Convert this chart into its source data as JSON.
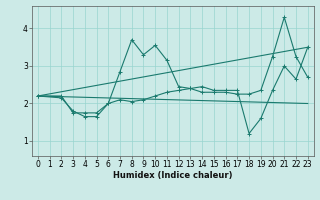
{
  "xlabel": "Humidex (Indice chaleur)",
  "xlim": [
    -0.5,
    23.5
  ],
  "ylim": [
    0.6,
    4.6
  ],
  "yticks": [
    1,
    2,
    3,
    4
  ],
  "xticks": [
    0,
    1,
    2,
    3,
    4,
    5,
    6,
    7,
    8,
    9,
    10,
    11,
    12,
    13,
    14,
    15,
    16,
    17,
    18,
    19,
    20,
    21,
    22,
    23
  ],
  "bg_color": "#cceae7",
  "grid_color": "#99d5d0",
  "line_color": "#1a7a6e",
  "lines": [
    {
      "x": [
        0,
        2,
        3,
        4,
        5,
        6,
        7,
        8,
        9,
        10,
        11,
        12,
        13,
        14,
        15,
        16,
        17,
        18,
        19,
        20,
        21,
        22,
        23
      ],
      "y": [
        2.2,
        2.2,
        1.75,
        1.75,
        1.75,
        2.0,
        2.85,
        3.7,
        3.3,
        3.55,
        3.15,
        2.45,
        2.4,
        2.3,
        2.3,
        2.3,
        2.25,
        2.25,
        2.35,
        3.25,
        4.3,
        3.25,
        2.7
      ],
      "marker": true
    },
    {
      "x": [
        0,
        2,
        3,
        4,
        5,
        6,
        7,
        8,
        9,
        10,
        11,
        12,
        13,
        14,
        15,
        16,
        17,
        18,
        19,
        20,
        21,
        22,
        23
      ],
      "y": [
        2.2,
        2.15,
        1.8,
        1.65,
        1.65,
        2.0,
        2.1,
        2.05,
        2.1,
        2.2,
        2.3,
        2.35,
        2.4,
        2.45,
        2.35,
        2.35,
        2.35,
        1.2,
        1.6,
        2.35,
        3.0,
        2.65,
        3.5
      ],
      "marker": true
    },
    {
      "x": [
        0,
        23
      ],
      "y": [
        2.2,
        3.5
      ],
      "marker": false
    },
    {
      "x": [
        0,
        23
      ],
      "y": [
        2.2,
        2.0
      ],
      "marker": false
    }
  ]
}
